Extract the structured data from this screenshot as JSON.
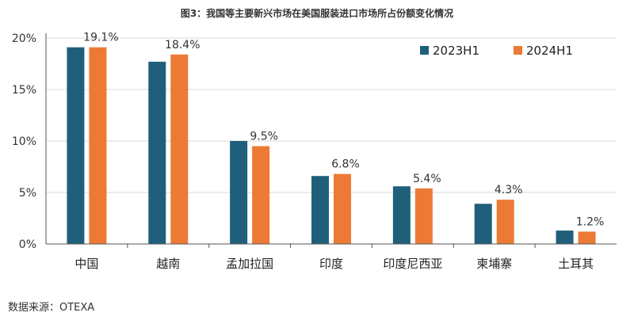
{
  "title": "图3：我国等主要新兴市场在美国服装进口市场所占份额变化情况",
  "source": "数据来源：OTEXA",
  "colors": {
    "s2023": "#1f5f7a",
    "s2024": "#ec7a35",
    "grid": "#d9d9d9",
    "axis": "#555555"
  },
  "chart_data": {
    "type": "bar",
    "categories": [
      "中国",
      "越南",
      "孟加拉国",
      "印度",
      "印度尼西亚",
      "柬埔寨",
      "土耳其"
    ],
    "series": [
      {
        "name": "2023H1",
        "values": [
          19.1,
          17.7,
          10.0,
          6.6,
          5.6,
          3.9,
          1.3
        ]
      },
      {
        "name": "2024H1",
        "values": [
          19.1,
          18.4,
          9.5,
          6.8,
          5.4,
          4.3,
          1.2
        ]
      }
    ],
    "data_labels": [
      "19.1%",
      "18.4%",
      "9.5%",
      "6.8%",
      "5.4%",
      "4.3%",
      "1.2%"
    ],
    "yticks": [
      "0%",
      "5%",
      "10%",
      "15%",
      "20%"
    ],
    "ylim": [
      0,
      20
    ],
    "ystep": 5,
    "grid": true,
    "legend_position": "top-right"
  }
}
